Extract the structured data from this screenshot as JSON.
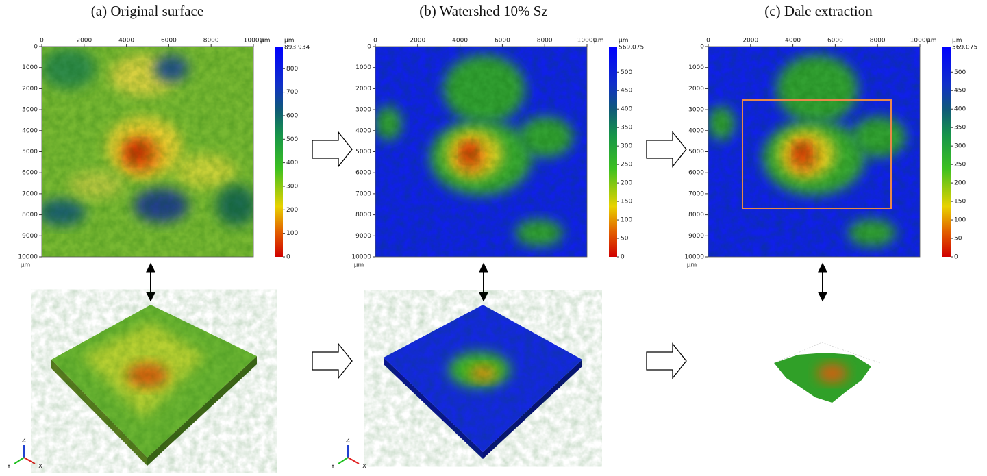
{
  "panels": [
    {
      "title": "(a) Original surface",
      "xticks": [
        "0",
        "2000",
        "4000",
        "6000",
        "8000",
        "10000"
      ],
      "x_unit": "µm",
      "yticks": [
        "0",
        "1000",
        "2000",
        "3000",
        "4000",
        "5000",
        "6000",
        "7000",
        "8000",
        "9000",
        "10000"
      ],
      "y_unit": "µm",
      "colorbar": {
        "unit": "µm",
        "max": "893.934",
        "ticks": [
          "800",
          "700",
          "600",
          "500",
          "400",
          "300",
          "200",
          "100",
          "0"
        ]
      },
      "triad": {
        "z": "Z",
        "y": "Y",
        "x": "X"
      }
    },
    {
      "title": "(b) Watershed 10% Sz",
      "xticks": [
        "0",
        "2000",
        "4000",
        "6000",
        "8000",
        "10000"
      ],
      "x_unit": "µm",
      "yticks": [
        "0",
        "1000",
        "2000",
        "3000",
        "4000",
        "5000",
        "6000",
        "7000",
        "8000",
        "9000",
        "10000"
      ],
      "y_unit": "µm",
      "colorbar": {
        "unit": "µm",
        "max": "569.075",
        "ticks": [
          "500",
          "450",
          "400",
          "350",
          "300",
          "250",
          "200",
          "150",
          "100",
          "50",
          "0"
        ]
      },
      "triad": {
        "z": "Z",
        "y": "Y",
        "x": "X"
      }
    },
    {
      "title": "(c) Dale extraction",
      "xticks": [
        "0",
        "2000",
        "4000",
        "6000",
        "8000",
        "10000"
      ],
      "x_unit": "µm",
      "yticks": [
        "0",
        "1000",
        "2000",
        "3000",
        "4000",
        "5000",
        "6000",
        "7000",
        "8000",
        "9000",
        "10000"
      ],
      "y_unit": "µm",
      "colorbar": {
        "unit": "µm",
        "max": "569.075",
        "ticks": [
          "500",
          "450",
          "400",
          "350",
          "300",
          "250",
          "200",
          "150",
          "100",
          "50",
          "0"
        ]
      }
    }
  ]
}
